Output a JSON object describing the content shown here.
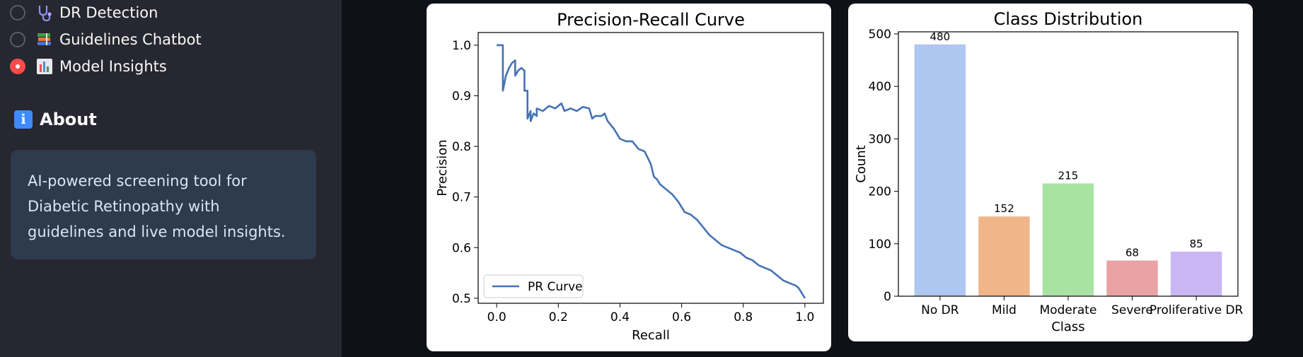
{
  "sidebar": {
    "nav_items": [
      {
        "label": "DR Detection",
        "icon": "stethoscope-icon",
        "selected": false
      },
      {
        "label": "Guidelines Chatbot",
        "icon": "books-icon",
        "selected": false
      },
      {
        "label": "Model Insights",
        "icon": "bar-chart-icon",
        "selected": true
      }
    ],
    "about": {
      "icon": "info-icon",
      "icon_text": "i",
      "title": "About",
      "text": "AI-powered screening tool for Diabetic Retinopathy with guidelines and live model insights."
    }
  },
  "chart_data": [
    {
      "type": "line",
      "title": "Precision-Recall Curve",
      "xlabel": "Recall",
      "ylabel": "Precision",
      "xlim": [
        -0.06,
        1.06
      ],
      "ylim": [
        0.49,
        1.025
      ],
      "xticks": [
        "0.0",
        "0.2",
        "0.4",
        "0.6",
        "0.8",
        "1.0"
      ],
      "yticks": [
        "0.5",
        "0.6",
        "0.7",
        "0.8",
        "0.9",
        "1.0"
      ],
      "legend": "bottom-left",
      "grid": false,
      "series": [
        {
          "name": "PR Curve",
          "color": "#4472b4",
          "x": [
            0.0,
            0.02,
            0.02,
            0.03,
            0.04,
            0.05,
            0.06,
            0.06,
            0.07,
            0.08,
            0.09,
            0.09,
            0.1,
            0.1,
            0.11,
            0.11,
            0.12,
            0.13,
            0.13,
            0.15,
            0.17,
            0.19,
            0.21,
            0.22,
            0.24,
            0.26,
            0.28,
            0.3,
            0.31,
            0.32,
            0.34,
            0.35,
            0.36,
            0.38,
            0.4,
            0.42,
            0.44,
            0.46,
            0.48,
            0.5,
            0.51,
            0.52,
            0.53,
            0.55,
            0.57,
            0.59,
            0.61,
            0.63,
            0.65,
            0.67,
            0.69,
            0.71,
            0.73,
            0.75,
            0.77,
            0.79,
            0.81,
            0.83,
            0.85,
            0.87,
            0.89,
            0.91,
            0.93,
            0.95,
            0.97,
            0.98,
            0.99,
            1.0
          ],
          "y": [
            1.0,
            1.0,
            0.91,
            0.94,
            0.955,
            0.965,
            0.97,
            0.94,
            0.95,
            0.955,
            0.95,
            0.91,
            0.91,
            0.855,
            0.87,
            0.85,
            0.865,
            0.86,
            0.875,
            0.87,
            0.88,
            0.875,
            0.885,
            0.87,
            0.875,
            0.87,
            0.878,
            0.875,
            0.855,
            0.86,
            0.86,
            0.865,
            0.85,
            0.835,
            0.815,
            0.81,
            0.81,
            0.795,
            0.79,
            0.765,
            0.74,
            0.735,
            0.725,
            0.715,
            0.705,
            0.69,
            0.67,
            0.665,
            0.655,
            0.64,
            0.625,
            0.615,
            0.605,
            0.6,
            0.595,
            0.59,
            0.58,
            0.575,
            0.565,
            0.56,
            0.555,
            0.545,
            0.535,
            0.53,
            0.525,
            0.52,
            0.51,
            0.5
          ]
        }
      ]
    },
    {
      "type": "bar",
      "title": "Class Distribution",
      "xlabel": "Class",
      "ylabel": "Count",
      "ylim": [
        0,
        504
      ],
      "yticks": [
        0,
        100,
        200,
        300,
        400,
        500
      ],
      "grid": false,
      "categories": [
        "No DR",
        "Mild",
        "Moderate",
        "Severe",
        "Proliferative DR"
      ],
      "values": [
        480,
        152,
        215,
        68,
        85
      ],
      "value_labels": [
        "480",
        "152",
        "215",
        "68",
        "85"
      ],
      "colors": [
        "#aec7f0",
        "#f0b68a",
        "#a8e3a4",
        "#e9a3a3",
        "#c9b6f2"
      ]
    }
  ]
}
